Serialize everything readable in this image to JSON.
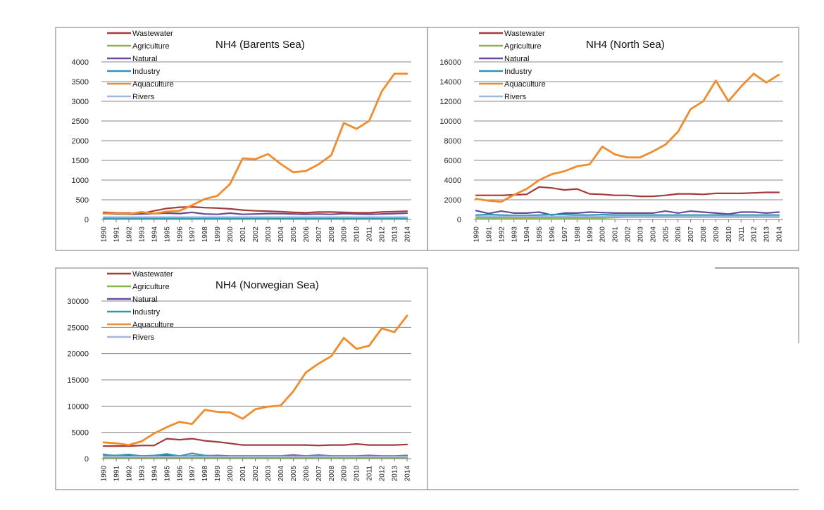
{
  "chart_data": [
    {
      "type": "line",
      "title": "NH4 (Barents Sea)",
      "ylim": [
        0,
        4000
      ],
      "yticks": [
        0,
        500,
        1000,
        1500,
        2000,
        2500,
        3000,
        3500,
        4000
      ],
      "x": [
        "1990",
        "1991",
        "1992",
        "1993",
        "1994",
        "1995",
        "1996",
        "1997",
        "1998",
        "1999",
        "2000",
        "2001",
        "2002",
        "2003",
        "2004",
        "2005",
        "2006",
        "2007",
        "2008",
        "2009",
        "2010",
        "2011",
        "2012",
        "2013",
        "2014"
      ],
      "legend_position": "top-left",
      "grid": true,
      "series": [
        {
          "name": "Wastewater",
          "color": "#a33b3b",
          "values": [
            180,
            170,
            160,
            150,
            220,
            280,
            310,
            320,
            300,
            290,
            270,
            240,
            220,
            210,
            200,
            180,
            170,
            190,
            190,
            180,
            170,
            170,
            190,
            200,
            210
          ]
        },
        {
          "name": "Agriculture",
          "color": "#8bb24d",
          "values": [
            20,
            20,
            20,
            20,
            20,
            20,
            20,
            20,
            20,
            20,
            20,
            20,
            20,
            20,
            20,
            20,
            20,
            20,
            20,
            20,
            20,
            20,
            20,
            20,
            20
          ]
        },
        {
          "name": "Natural",
          "color": "#6a4a99",
          "values": [
            150,
            140,
            130,
            140,
            150,
            160,
            150,
            180,
            140,
            130,
            160,
            130,
            140,
            150,
            150,
            140,
            130,
            140,
            130,
            150,
            140,
            130,
            140,
            150,
            160
          ]
        },
        {
          "name": "Industry",
          "color": "#2f97b3",
          "values": [
            30,
            30,
            30,
            30,
            30,
            30,
            30,
            30,
            30,
            30,
            30,
            30,
            30,
            30,
            30,
            30,
            30,
            30,
            30,
            30,
            30,
            30,
            30,
            30,
            30
          ]
        },
        {
          "name": "Aquaculture",
          "color": "#f08c2e",
          "values": [
            150,
            160,
            140,
            190,
            150,
            200,
            220,
            360,
            520,
            600,
            900,
            1550,
            1530,
            1660,
            1410,
            1200,
            1230,
            1400,
            1630,
            2450,
            2300,
            2500,
            3250,
            3700,
            3700
          ]
        },
        {
          "name": "Rivers",
          "color": "#9fb7e0",
          "values": [
            60,
            60,
            60,
            60,
            60,
            60,
            60,
            60,
            60,
            60,
            60,
            60,
            60,
            60,
            60,
            60,
            60,
            60,
            60,
            60,
            60,
            60,
            60,
            60,
            60
          ]
        }
      ]
    },
    {
      "type": "line",
      "title": "NH4 (North Sea)",
      "ylim": [
        0,
        16000
      ],
      "yticks": [
        0,
        2000,
        4000,
        6000,
        8000,
        10000,
        12000,
        14000,
        16000
      ],
      "x": [
        "1990",
        "1991",
        "1992",
        "1993",
        "1994",
        "1995",
        "1996",
        "1997",
        "1998",
        "1999",
        "2000",
        "2001",
        "2002",
        "2003",
        "2004",
        "2005",
        "2006",
        "2007",
        "2008",
        "2009",
        "2010",
        "2011",
        "2012",
        "2013",
        "2014"
      ],
      "legend_position": "top-left",
      "grid": true,
      "series": [
        {
          "name": "Wastewater",
          "color": "#a33b3b",
          "values": [
            2450,
            2450,
            2450,
            2500,
            2550,
            3300,
            3200,
            3000,
            3100,
            2600,
            2550,
            2450,
            2450,
            2350,
            2350,
            2450,
            2600,
            2600,
            2550,
            2650,
            2650,
            2650,
            2700,
            2750,
            2750
          ]
        },
        {
          "name": "Agriculture",
          "color": "#8bb24d",
          "values": [
            150,
            150,
            150,
            150,
            150,
            150,
            150,
            150,
            150,
            150,
            150,
            200,
            250,
            250,
            250,
            250,
            250,
            250,
            250,
            250,
            250,
            250,
            250,
            250,
            250
          ]
        },
        {
          "name": "Natural",
          "color": "#6a4a99",
          "values": [
            900,
            600,
            850,
            650,
            650,
            750,
            450,
            650,
            650,
            750,
            700,
            650,
            650,
            650,
            650,
            850,
            650,
            850,
            750,
            650,
            550,
            750,
            750,
            650,
            750
          ]
        },
        {
          "name": "Industry",
          "color": "#2f97b3",
          "values": [
            450,
            500,
            450,
            400,
            400,
            450,
            500,
            500,
            450,
            450,
            500,
            450,
            450,
            450,
            450,
            450,
            450,
            450,
            450,
            450,
            450,
            450,
            450,
            450,
            450
          ]
        },
        {
          "name": "Aquaculture",
          "color": "#f08c2e",
          "values": [
            2100,
            1900,
            1800,
            2500,
            3100,
            4000,
            4600,
            4900,
            5400,
            5600,
            7400,
            6600,
            6300,
            6300,
            6900,
            7600,
            8900,
            11200,
            12000,
            14100,
            12000,
            13500,
            14800,
            13900,
            14700
          ]
        },
        {
          "name": "Rivers",
          "color": "#9fb7e0",
          "values": [
            300,
            300,
            300,
            300,
            300,
            300,
            300,
            300,
            300,
            300,
            300,
            300,
            300,
            300,
            300,
            300,
            300,
            300,
            300,
            300,
            300,
            300,
            300,
            300,
            300
          ]
        }
      ]
    },
    {
      "type": "line",
      "title": "NH4 (Norwegian Sea)",
      "ylim": [
        0,
        30000
      ],
      "yticks": [
        0,
        5000,
        10000,
        15000,
        20000,
        25000,
        30000
      ],
      "x": [
        "1990",
        "1991",
        "1992",
        "1993",
        "1994",
        "1995",
        "1996",
        "1997",
        "1998",
        "1999",
        "2000",
        "2001",
        "2002",
        "2003",
        "2004",
        "2005",
        "2006",
        "2007",
        "2008",
        "2009",
        "2010",
        "2011",
        "2012",
        "2013",
        "2014"
      ],
      "legend_position": "top-left",
      "grid": true,
      "series": [
        {
          "name": "Wastewater",
          "color": "#a33b3b",
          "values": [
            2400,
            2400,
            2400,
            2500,
            2500,
            3800,
            3600,
            3800,
            3400,
            3200,
            2900,
            2600,
            2600,
            2600,
            2600,
            2600,
            2600,
            2500,
            2600,
            2600,
            2800,
            2600,
            2600,
            2600,
            2700
          ]
        },
        {
          "name": "Agriculture",
          "color": "#8bb24d",
          "values": [
            200,
            200,
            200,
            200,
            200,
            200,
            200,
            200,
            200,
            200,
            200,
            200,
            200,
            200,
            200,
            200,
            200,
            200,
            200,
            200,
            200,
            200,
            200,
            200,
            200
          ]
        },
        {
          "name": "Natural",
          "color": "#6a4a99",
          "values": [
            800,
            500,
            700,
            500,
            500,
            700,
            400,
            500,
            500,
            600,
            500,
            500,
            500,
            500,
            500,
            700,
            500,
            700,
            500,
            500,
            500,
            600,
            500,
            500,
            600
          ]
        },
        {
          "name": "Industry",
          "color": "#2f97b3",
          "values": [
            700,
            600,
            800,
            500,
            600,
            900,
            500,
            1000,
            600,
            500,
            500,
            500,
            500,
            500,
            500,
            500,
            500,
            600,
            500,
            500,
            500,
            500,
            500,
            500,
            500
          ]
        },
        {
          "name": "Aquaculture",
          "color": "#f08c2e",
          "values": [
            3100,
            2900,
            2600,
            3300,
            4800,
            6000,
            7000,
            6600,
            9300,
            8900,
            8800,
            7600,
            9400,
            9900,
            10100,
            12800,
            16400,
            18100,
            19500,
            23000,
            20900,
            21500,
            24800,
            24100,
            27200
          ]
        },
        {
          "name": "Rivers",
          "color": "#9fb7e0",
          "values": [
            400,
            400,
            400,
            400,
            400,
            400,
            400,
            400,
            400,
            400,
            400,
            400,
            400,
            400,
            400,
            400,
            400,
            400,
            400,
            400,
            400,
            400,
            400,
            400,
            400
          ]
        }
      ]
    }
  ]
}
